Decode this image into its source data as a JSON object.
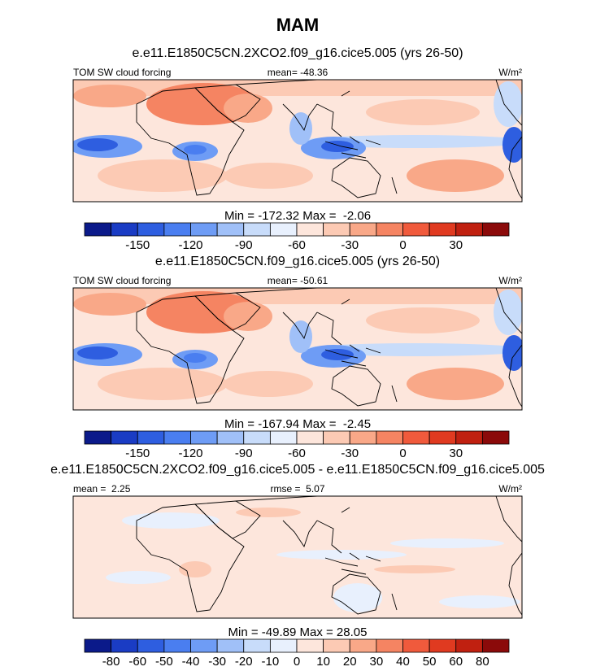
{
  "title": "MAM",
  "panels": [
    {
      "subtitle": "e.e11.E1850C5CN.2XCO2.f09_g16.cice5.005 (yrs 26-50)",
      "left_label": "TOM SW cloud forcing",
      "center_label": "mean= -48.36",
      "units": "W/m²",
      "stats": "Min = -172.32 Max =  -2.06",
      "colorbar": {
        "colors": [
          "#0b1a8a",
          "#1a3cc4",
          "#2e5ee0",
          "#4a7ef0",
          "#6e9cf5",
          "#a0c0f8",
          "#c8dcfa",
          "#e8f0fd",
          "#fde6dc",
          "#fccab4",
          "#f9a888",
          "#f58462",
          "#f05a3c",
          "#e03a20",
          "#c02010",
          "#8b0a0a"
        ],
        "boundaries": [
          null,
          null,
          -150,
          null,
          -120,
          null,
          -90,
          null,
          -60,
          null,
          -30,
          null,
          0,
          null,
          30,
          null,
          null
        ]
      }
    },
    {
      "subtitle": "e.e11.E1850C5CN.f09_g16.cice5.005 (yrs 26-50)",
      "left_label": "TOM SW cloud forcing",
      "center_label": "mean= -50.61",
      "units": "W/m²",
      "stats": "Min = -167.94 Max =  -2.45",
      "colorbar": {
        "colors": [
          "#0b1a8a",
          "#1a3cc4",
          "#2e5ee0",
          "#4a7ef0",
          "#6e9cf5",
          "#a0c0f8",
          "#c8dcfa",
          "#e8f0fd",
          "#fde6dc",
          "#fccab4",
          "#f9a888",
          "#f58462",
          "#f05a3c",
          "#e03a20",
          "#c02010",
          "#8b0a0a"
        ],
        "boundaries": [
          null,
          null,
          -150,
          null,
          -120,
          null,
          -90,
          null,
          -60,
          null,
          -30,
          null,
          0,
          null,
          30,
          null,
          null
        ]
      }
    },
    {
      "subtitle": "e.e11.E1850C5CN.2XCO2.f09_g16.cice5.005 - e.e11.E1850C5CN.f09_g16.cice5.005",
      "left_label": "mean =  2.25",
      "center_label": "rmse =  5.07",
      "units": "W/m²",
      "stats": "Min = -49.89 Max = 28.05",
      "colorbar": {
        "colors": [
          "#0b1a8a",
          "#1a3cc4",
          "#2e5ee0",
          "#4a7ef0",
          "#6e9cf5",
          "#a0c0f8",
          "#c8dcfa",
          "#e8f0fd",
          "#fde6dc",
          "#fccab4",
          "#f9a888",
          "#f58462",
          "#f05a3c",
          "#e03a20",
          "#c02010",
          "#8b0a0a"
        ],
        "boundaries": [
          null,
          -80,
          -60,
          -50,
          -40,
          -30,
          -20,
          -10,
          0,
          10,
          20,
          30,
          40,
          50,
          60,
          80,
          null
        ]
      }
    }
  ]
}
